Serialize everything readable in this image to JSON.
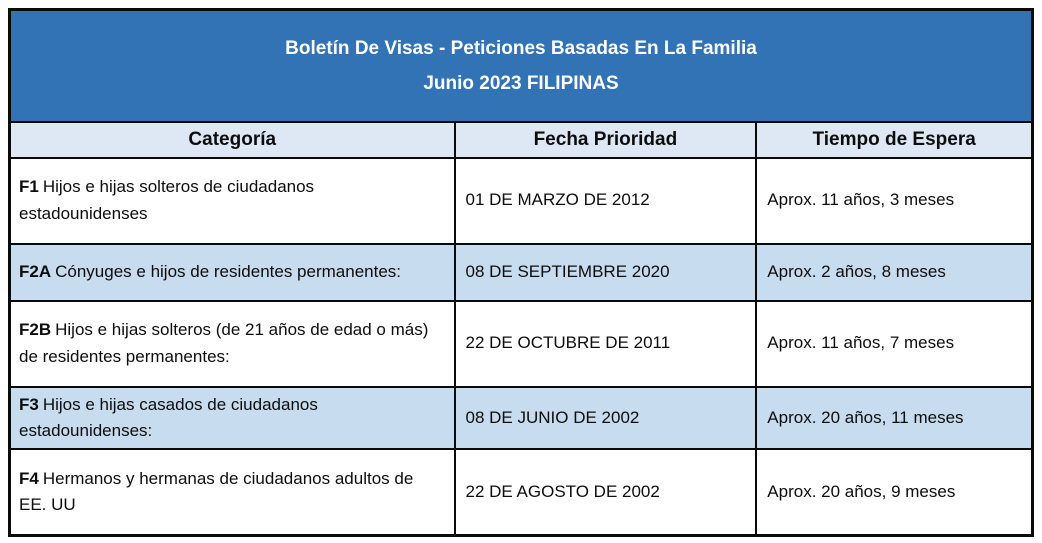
{
  "table": {
    "title_line1": "Boletín De Visas - Peticiones Basadas En La Familia",
    "title_line2": "Junio 2023 FILIPINAS",
    "columns": [
      "Categoría",
      "Fecha Prioridad",
      "Tiempo de Espera"
    ],
    "rows": [
      {
        "code": "F1",
        "category": "Hijos e hijas solteros de ciudadanos estadounidenses",
        "priority_date": "01 DE MARZO DE 2012",
        "wait_time": "Aprox. 11 años, 3 meses",
        "highlighted": false
      },
      {
        "code": "F2A",
        "category": "Cónyuges e hijos de residentes permanentes:",
        "priority_date": "08 DE SEPTIEMBRE 2020",
        "wait_time": "Aprox. 2 años, 8 meses",
        "highlighted": true
      },
      {
        "code": "F2B",
        "category": "Hijos e hijas solteros (de 21 años de edad o más) de residentes permanentes:",
        "priority_date": "22 DE OCTUBRE DE 2011",
        "wait_time": "Aprox. 11 años, 7 meses",
        "highlighted": false
      },
      {
        "code": "F3",
        "category": "Hijos e hijas casados de ciudadanos estadounidenses:",
        "priority_date": "08 DE JUNIO DE 2002",
        "wait_time": "Aprox. 20 años, 11 meses",
        "highlighted": true
      },
      {
        "code": "F4",
        "category": "Hermanos y hermanas de ciudadanos adultos de EE. UU",
        "priority_date": "22 DE AGOSTO DE 2002",
        "wait_time": "Aprox. 20 años, 9 meses",
        "highlighted": false
      }
    ]
  },
  "colors": {
    "banner_background": "#3273b5",
    "banner_text": "#ffffff",
    "header_row_background": "#dee8f5",
    "highlight_row_background": "#c7dcee",
    "border": "#0a0a0a"
  }
}
